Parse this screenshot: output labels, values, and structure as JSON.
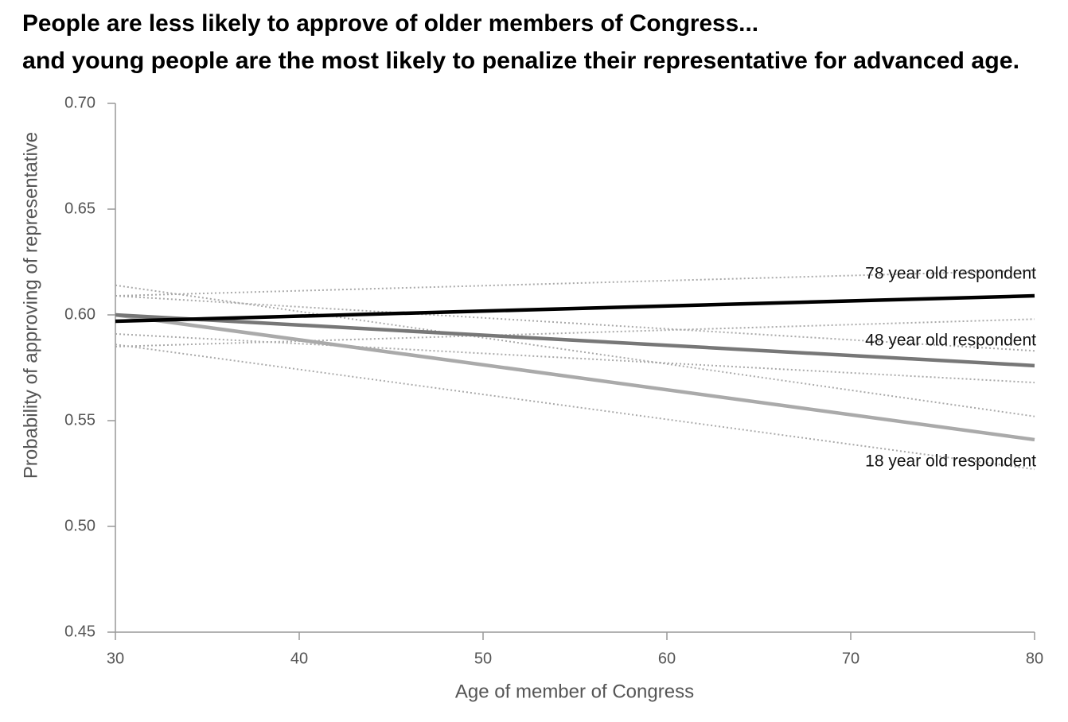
{
  "chart_data": {
    "type": "line",
    "title": "People are less likely to approve of older members of Congress...",
    "subtitle": "and young people are the most likely to penalize their representative for advanced age.",
    "x_label": "Age of member of Congress",
    "y_label": "Probability of approving of representative",
    "x": [
      30,
      80
    ],
    "xlim": [
      30,
      80
    ],
    "xticks": [
      30,
      40,
      50,
      60,
      70,
      80
    ],
    "ylim": [
      0.45,
      0.7
    ],
    "yticks": [
      {
        "value": 0.45,
        "label": "0.45"
      },
      {
        "value": 0.5,
        "label": "0.50"
      },
      {
        "value": 0.55,
        "label": "0.55"
      },
      {
        "value": 0.6,
        "label": "0.60"
      },
      {
        "value": 0.65,
        "label": "0.65"
      },
      {
        "value": 0.7,
        "label": "0.70"
      }
    ],
    "band_color": "#aaaaaa",
    "series": [
      {
        "name": "78 year old respondent",
        "color": "#000000",
        "values": [
          0.597,
          0.609
        ],
        "lower": [
          0.585,
          0.598
        ],
        "upper": [
          0.609,
          0.621
        ]
      },
      {
        "name": "48 year old respondent",
        "color": "#777777",
        "values": [
          0.6,
          0.576
        ],
        "lower": [
          0.591,
          0.568
        ],
        "upper": [
          0.609,
          0.583
        ]
      },
      {
        "name": "18 year old respondent",
        "color": "#aaaaaa",
        "values": [
          0.6,
          0.541
        ],
        "lower": [
          0.586,
          0.527
        ],
        "upper": [
          0.614,
          0.552
        ]
      }
    ]
  }
}
